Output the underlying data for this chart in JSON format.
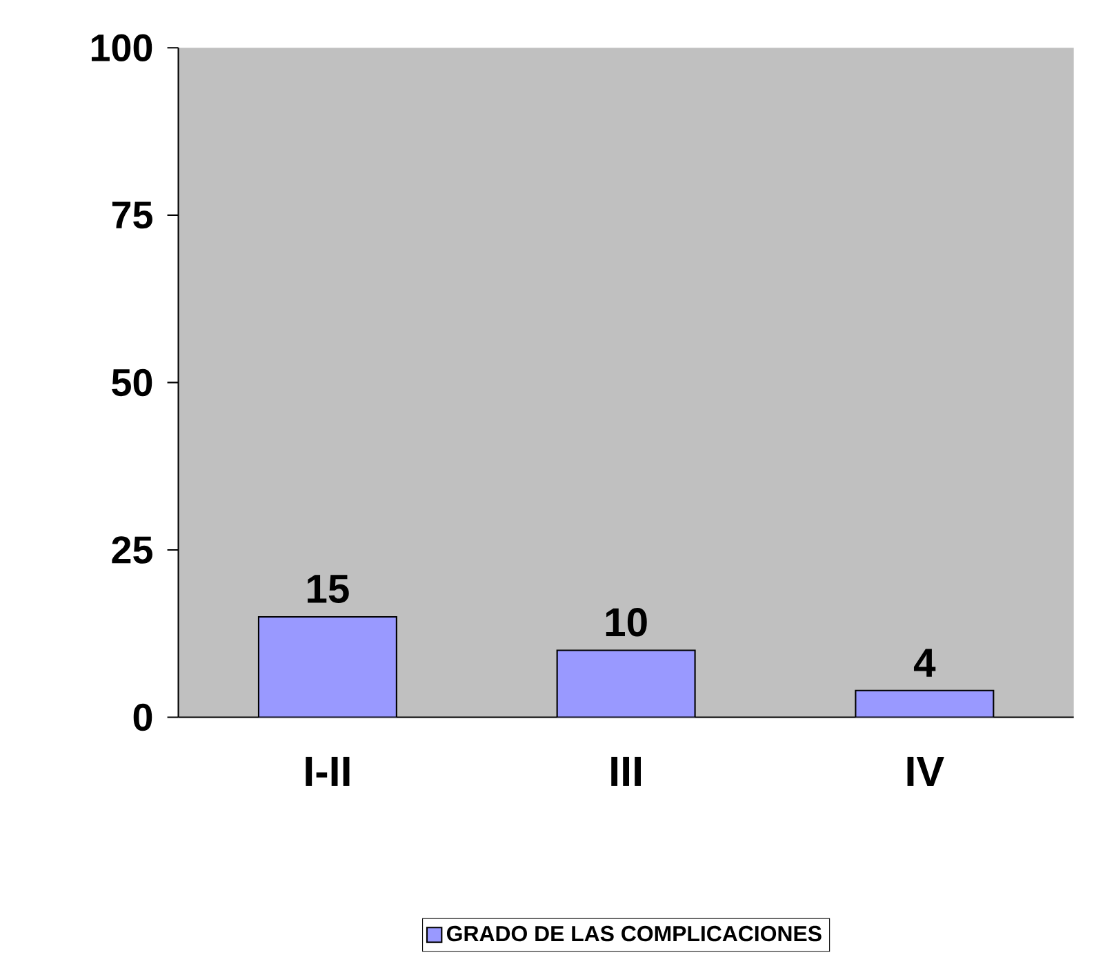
{
  "chart_data": {
    "type": "bar",
    "categories": [
      "I-II",
      "III",
      "IV"
    ],
    "series": [
      {
        "name": "GRADO DE LAS COMPLICACIONES",
        "color": "#9999ff",
        "values": [
          15,
          10,
          4
        ]
      }
    ],
    "ylim": [
      0,
      100
    ],
    "yticks": [
      0,
      25,
      50,
      75,
      100
    ],
    "data_labels": true,
    "legend": "bottom",
    "grid": false
  }
}
